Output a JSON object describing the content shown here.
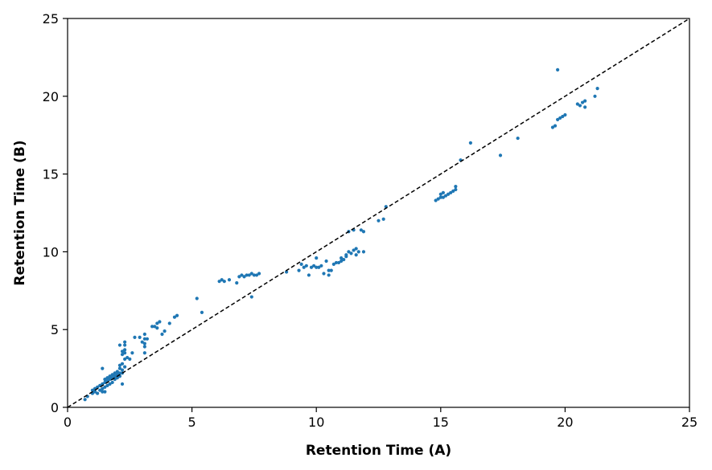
{
  "chart_data": {
    "type": "scatter",
    "xlabel": "Retention Time (A)",
    "ylabel": "Retention Time (B)",
    "xlim": [
      0,
      25
    ],
    "ylim": [
      0,
      25
    ],
    "xticks": [
      0,
      5,
      10,
      15,
      20,
      25
    ],
    "yticks": [
      0,
      5,
      10,
      15,
      20,
      25
    ],
    "grid": false,
    "reference_line": {
      "style": "dashed",
      "color": "#000000",
      "from": [
        0,
        0
      ],
      "to": [
        25,
        25
      ]
    },
    "series": [
      {
        "color": "#1f77b4",
        "points": [
          [
            0.7,
            0.5
          ],
          [
            0.8,
            0.7
          ],
          [
            1.0,
            0.9
          ],
          [
            1.0,
            1.1
          ],
          [
            1.1,
            1.0
          ],
          [
            1.1,
            1.2
          ],
          [
            1.2,
            0.9
          ],
          [
            1.2,
            1.3
          ],
          [
            1.3,
            1.1
          ],
          [
            1.3,
            1.4
          ],
          [
            1.4,
            1.0
          ],
          [
            1.4,
            1.2
          ],
          [
            1.4,
            1.5
          ],
          [
            1.5,
            1.0
          ],
          [
            1.5,
            1.3
          ],
          [
            1.5,
            1.6
          ],
          [
            1.5,
            1.8
          ],
          [
            1.6,
            1.4
          ],
          [
            1.6,
            1.7
          ],
          [
            1.6,
            1.9
          ],
          [
            1.7,
            1.5
          ],
          [
            1.7,
            1.8
          ],
          [
            1.7,
            2.0
          ],
          [
            1.8,
            1.6
          ],
          [
            1.8,
            1.9
          ],
          [
            1.8,
            2.1
          ],
          [
            1.9,
            1.8
          ],
          [
            1.9,
            2.0
          ],
          [
            1.9,
            2.2
          ],
          [
            2.0,
            1.9
          ],
          [
            2.0,
            2.1
          ],
          [
            2.0,
            2.3
          ],
          [
            2.1,
            2.0
          ],
          [
            2.1,
            2.2
          ],
          [
            2.1,
            2.5
          ],
          [
            2.1,
            2.7
          ],
          [
            2.2,
            2.2
          ],
          [
            2.2,
            2.4
          ],
          [
            2.2,
            2.8
          ],
          [
            2.2,
            3.4
          ],
          [
            2.2,
            3.6
          ],
          [
            2.2,
            1.5
          ],
          [
            1.4,
            2.5
          ],
          [
            2.1,
            4.0
          ],
          [
            2.3,
            2.6
          ],
          [
            2.3,
            3.1
          ],
          [
            2.3,
            3.5
          ],
          [
            2.3,
            3.7
          ],
          [
            2.3,
            4.0
          ],
          [
            2.3,
            4.2
          ],
          [
            2.4,
            3.2
          ],
          [
            2.5,
            3.1
          ],
          [
            2.6,
            3.5
          ],
          [
            2.7,
            4.5
          ],
          [
            2.9,
            4.5
          ],
          [
            3.0,
            4.2
          ],
          [
            3.1,
            3.5
          ],
          [
            3.1,
            3.9
          ],
          [
            3.1,
            4.1
          ],
          [
            3.1,
            4.4
          ],
          [
            3.2,
            4.4
          ],
          [
            3.1,
            4.7
          ],
          [
            3.4,
            5.2
          ],
          [
            3.5,
            5.2
          ],
          [
            3.6,
            5.1
          ],
          [
            3.6,
            5.4
          ],
          [
            3.7,
            5.5
          ],
          [
            3.8,
            4.7
          ],
          [
            3.9,
            4.9
          ],
          [
            4.1,
            5.4
          ],
          [
            4.3,
            5.8
          ],
          [
            4.4,
            5.9
          ],
          [
            5.2,
            7.0
          ],
          [
            5.4,
            6.1
          ],
          [
            6.1,
            8.1
          ],
          [
            6.2,
            8.2
          ],
          [
            6.3,
            8.1
          ],
          [
            6.5,
            8.2
          ],
          [
            6.8,
            8.0
          ],
          [
            6.9,
            8.4
          ],
          [
            7.0,
            8.5
          ],
          [
            7.1,
            8.4
          ],
          [
            7.2,
            8.5
          ],
          [
            7.3,
            8.5
          ],
          [
            7.4,
            8.6
          ],
          [
            7.5,
            8.5
          ],
          [
            7.6,
            8.5
          ],
          [
            7.7,
            8.6
          ],
          [
            7.4,
            7.1
          ],
          [
            8.8,
            8.7
          ],
          [
            9.3,
            8.8
          ],
          [
            9.4,
            9.2
          ],
          [
            9.5,
            9.0
          ],
          [
            9.6,
            9.1
          ],
          [
            9.7,
            8.5
          ],
          [
            9.8,
            9.0
          ],
          [
            9.9,
            9.1
          ],
          [
            10.0,
            9.0
          ],
          [
            10.0,
            9.6
          ],
          [
            10.1,
            9.0
          ],
          [
            10.2,
            9.1
          ],
          [
            10.3,
            8.6
          ],
          [
            10.4,
            9.4
          ],
          [
            10.5,
            8.5
          ],
          [
            10.5,
            8.8
          ],
          [
            10.6,
            8.8
          ],
          [
            10.7,
            9.2
          ],
          [
            10.8,
            9.3
          ],
          [
            10.9,
            9.3
          ],
          [
            11.0,
            9.4
          ],
          [
            11.0,
            9.6
          ],
          [
            11.1,
            9.5
          ],
          [
            11.2,
            9.7
          ],
          [
            11.2,
            9.8
          ],
          [
            11.3,
            10.0
          ],
          [
            11.4,
            9.9
          ],
          [
            11.5,
            10.1
          ],
          [
            11.6,
            10.2
          ],
          [
            11.6,
            9.8
          ],
          [
            11.7,
            10.0
          ],
          [
            11.3,
            11.3
          ],
          [
            11.5,
            11.4
          ],
          [
            11.8,
            11.4
          ],
          [
            11.9,
            11.3
          ],
          [
            11.9,
            10.0
          ],
          [
            12.5,
            12.0
          ],
          [
            12.7,
            12.1
          ],
          [
            12.8,
            12.9
          ],
          [
            14.8,
            13.3
          ],
          [
            14.9,
            13.4
          ],
          [
            15.0,
            13.5
          ],
          [
            15.0,
            13.7
          ],
          [
            15.1,
            13.5
          ],
          [
            15.1,
            13.8
          ],
          [
            15.2,
            13.6
          ],
          [
            15.3,
            13.7
          ],
          [
            15.4,
            13.8
          ],
          [
            15.5,
            13.9
          ],
          [
            15.6,
            14.0
          ],
          [
            15.6,
            14.2
          ],
          [
            15.8,
            15.9
          ],
          [
            16.2,
            17.0
          ],
          [
            17.4,
            16.2
          ],
          [
            18.1,
            17.3
          ],
          [
            19.5,
            18.0
          ],
          [
            19.6,
            18.1
          ],
          [
            19.7,
            18.5
          ],
          [
            19.8,
            18.6
          ],
          [
            19.9,
            18.7
          ],
          [
            20.0,
            18.8
          ],
          [
            19.7,
            21.7
          ],
          [
            20.5,
            19.5
          ],
          [
            20.6,
            19.4
          ],
          [
            20.7,
            19.6
          ],
          [
            20.8,
            19.3
          ],
          [
            20.8,
            19.7
          ],
          [
            21.2,
            20.0
          ],
          [
            21.3,
            20.5
          ]
        ]
      }
    ]
  }
}
